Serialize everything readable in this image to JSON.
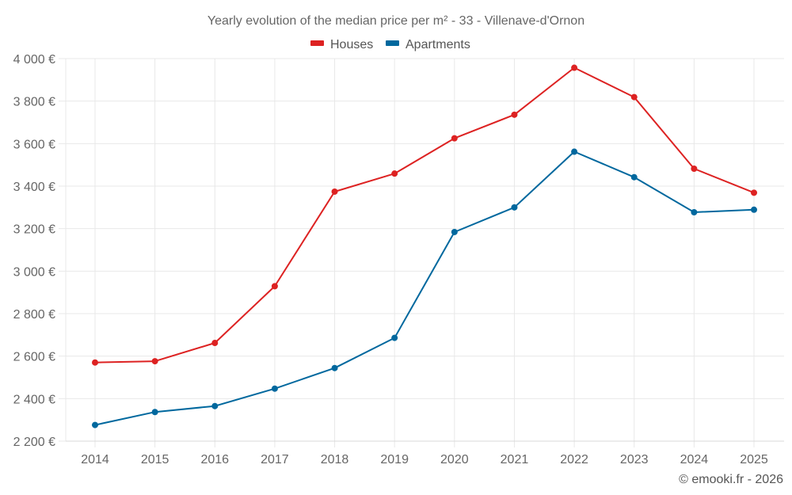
{
  "chart_data": {
    "type": "line",
    "title": "Yearly evolution of the median price per m² - 33 - Villenave-d'Ornon",
    "xlabel": "",
    "ylabel": "",
    "x": [
      "2014",
      "2015",
      "2016",
      "2017",
      "2018",
      "2019",
      "2020",
      "2021",
      "2022",
      "2023",
      "2024",
      "2025"
    ],
    "series": [
      {
        "name": "Houses",
        "color": "#dd2222",
        "values": [
          2570,
          2576,
          2662,
          2929,
          3374,
          3459,
          3625,
          3736,
          3957,
          3819,
          3482,
          3369
        ]
      },
      {
        "name": "Apartments",
        "color": "#00689e",
        "values": [
          2276,
          2337,
          2365,
          2447,
          2544,
          2686,
          3184,
          3300,
          3562,
          3442,
          3277,
          3289
        ]
      }
    ],
    "ylim": [
      2200,
      4000
    ],
    "yticks": [
      2200,
      2400,
      2600,
      2800,
      3000,
      3200,
      3400,
      3600,
      3800,
      4000
    ],
    "ytick_labels": [
      "2 200 €",
      "2 400 €",
      "2 600 €",
      "2 800 €",
      "3 000 €",
      "3 200 €",
      "3 400 €",
      "3 600 €",
      "3 800 €",
      "4 000 €"
    ],
    "grid": true,
    "legend_position": "top-center",
    "credit": "© emooki.fr - 2026"
  }
}
